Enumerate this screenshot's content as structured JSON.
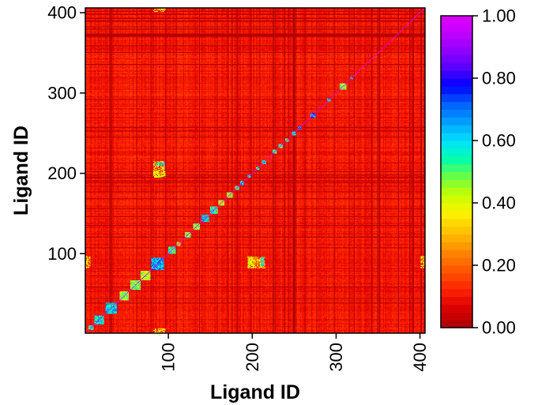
{
  "chart_data": {
    "type": "heatmap",
    "title": "",
    "xlabel": "Ligand ID",
    "ylabel": "Ligand ID",
    "xlim": [
      1,
      406
    ],
    "ylim": [
      1,
      406
    ],
    "x_ticks": [
      100,
      200,
      300,
      400
    ],
    "x_tick_labels": [
      "100",
      "200",
      "300",
      "400"
    ],
    "y_ticks": [
      100,
      200,
      300,
      400
    ],
    "y_tick_labels": [
      "100",
      "200",
      "300",
      "400"
    ],
    "value_range": [
      0.0,
      1.0
    ],
    "diagonal_value": 1.0,
    "background_value_range": [
      0.05,
      0.15
    ],
    "colorbar": {
      "ticks": [
        0.0,
        0.2,
        0.4,
        0.6,
        0.8,
        1.0
      ],
      "tick_labels": [
        "0.00",
        "0.20",
        "0.40",
        "0.60",
        "0.80",
        "1.00"
      ],
      "levels": 40,
      "colors": [
        "#b40000",
        "#e00000",
        "#ff2a00",
        "#ff5a00",
        "#ff8c00",
        "#ffc000",
        "#fff000",
        "#c8ff00",
        "#6eff40",
        "#00ffb0",
        "#00e0ff",
        "#00a0ff",
        "#0060ff",
        "#0000ff",
        "#5a00ff",
        "#9600ff",
        "#c800ff",
        "#e000ff"
      ]
    },
    "diagonal_blocks": [
      {
        "start": 5,
        "end": 10,
        "value": 0.55
      },
      {
        "start": 12,
        "end": 22,
        "value": 0.6
      },
      {
        "start": 25,
        "end": 38,
        "value": 0.62
      },
      {
        "start": 42,
        "end": 52,
        "value": 0.45
      },
      {
        "start": 55,
        "end": 66,
        "value": 0.48
      },
      {
        "start": 67,
        "end": 78,
        "value": 0.42
      },
      {
        "start": 80,
        "end": 94,
        "value": 0.65
      },
      {
        "start": 100,
        "end": 108,
        "value": 0.55
      },
      {
        "start": 110,
        "end": 114,
        "value": 0.4
      },
      {
        "start": 120,
        "end": 126,
        "value": 0.45
      },
      {
        "start": 130,
        "end": 137,
        "value": 0.45
      },
      {
        "start": 140,
        "end": 148,
        "value": 0.62
      },
      {
        "start": 150,
        "end": 158,
        "value": 0.55
      },
      {
        "start": 160,
        "end": 166,
        "value": 0.4
      },
      {
        "start": 170,
        "end": 176,
        "value": 0.42
      },
      {
        "start": 180,
        "end": 184,
        "value": 0.55
      },
      {
        "start": 186,
        "end": 190,
        "value": 0.6
      },
      {
        "start": 195,
        "end": 198,
        "value": 0.6
      },
      {
        "start": 205,
        "end": 208,
        "value": 0.55
      },
      {
        "start": 212,
        "end": 216,
        "value": 0.6
      },
      {
        "start": 225,
        "end": 229,
        "value": 0.5
      },
      {
        "start": 232,
        "end": 236,
        "value": 0.55
      },
      {
        "start": 240,
        "end": 243,
        "value": 0.55
      },
      {
        "start": 248,
        "end": 252,
        "value": 0.6
      },
      {
        "start": 255,
        "end": 258,
        "value": 0.65
      },
      {
        "start": 270,
        "end": 275,
        "value": 0.7
      },
      {
        "start": 290,
        "end": 293,
        "value": 0.6
      },
      {
        "start": 305,
        "end": 312,
        "value": 0.45
      },
      {
        "start": 318,
        "end": 320,
        "value": 0.6
      }
    ],
    "off_diagonal_features": [
      {
        "x": [
          1,
          6
        ],
        "y": [
          82,
          96
        ],
        "value": 0.35
      },
      {
        "x": [
          82,
          95
        ],
        "y": [
          196,
          215
        ],
        "value": 0.35
      },
      {
        "x": [
          195,
          202
        ],
        "y": [
          82,
          96
        ],
        "value": 0.4
      },
      {
        "x": [
          210,
          214
        ],
        "y": [
          85,
          95
        ],
        "value": 0.6
      },
      {
        "x": [
          402,
          406
        ],
        "y": [
          82,
          96
        ],
        "value": 0.35
      }
    ]
  }
}
